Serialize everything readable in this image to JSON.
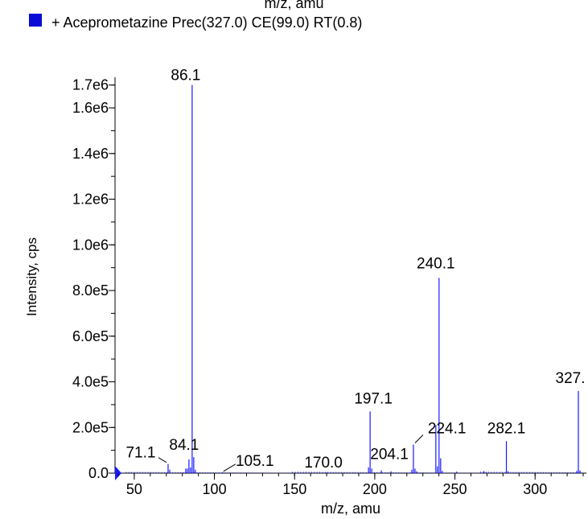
{
  "top_clipped_label": "m/z, amu",
  "legend": {
    "label": "+ Aceprometazine Prec(327.0) CE(99.0) RT(0.8)",
    "color": "#0b0bd6"
  },
  "chart_data": {
    "type": "bar",
    "xlabel": "m/z, amu",
    "ylabel": "Intensity, cps",
    "xlim": [
      38,
      332
    ],
    "ylim": [
      0,
      1720000
    ],
    "x_ticks": [
      50,
      100,
      150,
      200,
      250,
      300
    ],
    "x_tick_labels": [
      "50",
      "100",
      "150",
      "200",
      "250",
      "300"
    ],
    "y_ticks": [
      0,
      200000,
      400000,
      600000,
      800000,
      1000000,
      1200000,
      1400000,
      1600000,
      1700000
    ],
    "y_tick_labels": [
      "0.0",
      "2.0e5",
      "4.0e5",
      "6.0e5",
      "8.0e5",
      "1.0e6",
      "1.2e6",
      "1.4e6",
      "1.6e6",
      "1.7e6"
    ],
    "series_color": "#1a1aff",
    "peaks": [
      {
        "x": 86.1,
        "y": 1700000
      },
      {
        "x": 240.1,
        "y": 855000
      },
      {
        "x": 327.0,
        "y": 360000
      },
      {
        "x": 197.1,
        "y": 270000
      },
      {
        "x": 224.1,
        "y": 125000
      },
      {
        "x": 282.1,
        "y": 140000
      },
      {
        "x": 84.1,
        "y": 60000
      },
      {
        "x": 71.1,
        "y": 40000
      },
      {
        "x": 105.1,
        "y": 4000
      },
      {
        "x": 170.0,
        "y": 3000
      },
      {
        "x": 204.1,
        "y": 12000
      },
      {
        "x": 87.1,
        "y": 70000
      },
      {
        "x": 238.1,
        "y": 210000
      },
      {
        "x": 241.1,
        "y": 65000
      },
      {
        "x": 239.1,
        "y": 30000
      },
      {
        "x": 196.1,
        "y": 25000
      },
      {
        "x": 198.1,
        "y": 20000
      },
      {
        "x": 225.1,
        "y": 20000
      },
      {
        "x": 223.1,
        "y": 15000
      },
      {
        "x": 82.1,
        "y": 20000
      },
      {
        "x": 83.1,
        "y": 20000
      },
      {
        "x": 85.1,
        "y": 25000
      },
      {
        "x": 88.1,
        "y": 15000
      },
      {
        "x": 72.1,
        "y": 15000
      },
      {
        "x": 210.1,
        "y": 8000
      },
      {
        "x": 226.1,
        "y": 8000
      },
      {
        "x": 242.1,
        "y": 10000
      },
      {
        "x": 251.1,
        "y": 7000
      },
      {
        "x": 268.1,
        "y": 9000
      },
      {
        "x": 283.1,
        "y": 8000
      },
      {
        "x": 326.0,
        "y": 10000
      },
      {
        "x": 328.0,
        "y": 12000
      }
    ],
    "labels": [
      {
        "text": "86.1",
        "x": 86.1,
        "y": 1700000
      },
      {
        "text": "240.1",
        "x": 240.1,
        "y": 855000
      },
      {
        "text": "327.",
        "x": 327.0,
        "y": 360000
      },
      {
        "text": "197.1",
        "x": 197.1,
        "y": 270000
      },
      {
        "text": "224.1",
        "x": 224.1,
        "y": 125000
      },
      {
        "text": "282.1",
        "x": 282.1,
        "y": 140000
      },
      {
        "text": "84.1",
        "x": 84.1,
        "y": 60000
      },
      {
        "text": "71.1",
        "x": 71.1,
        "y": 40000
      },
      {
        "text": "105.1",
        "x": 105.1,
        "y": 4000
      },
      {
        "text": "170.0",
        "x": 170.0,
        "y": 3000
      },
      {
        "text": "204.1",
        "x": 204.1,
        "y": 12000
      }
    ]
  }
}
